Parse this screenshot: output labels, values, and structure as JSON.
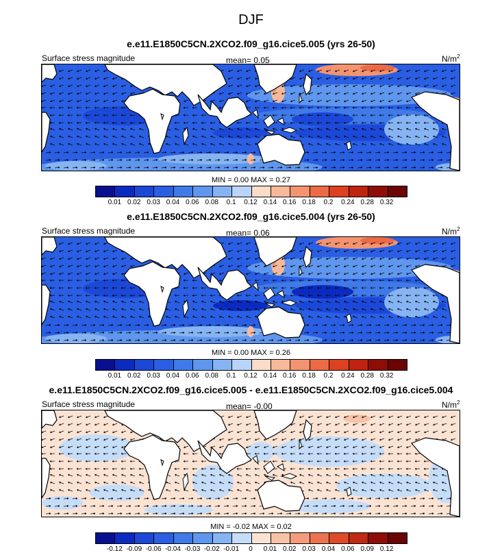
{
  "main_title": "DJF",
  "units_label": "N/m",
  "units_exp": "2",
  "field_label": "Surface stress magnitude",
  "panels": [
    {
      "title": "e.e11.E1850C5CN.2XCO2.f09_g16.cice5.005 (yrs 26-50)",
      "mean": "mean=  0.05",
      "minmax": "MIN =  0.00 MAX =  0.27",
      "tick_labels": [
        "0.01",
        "0.02",
        "0.03",
        "0.04",
        "0.06",
        "0.08",
        "0.1",
        "0.12",
        "0.14",
        "0.16",
        "0.18",
        "0.2",
        "0.24",
        "0.28",
        "0.32"
      ]
    },
    {
      "title": "e.e11.E1850C5CN.2XCO2.f09_g16.cice5.004 (yrs 26-50)",
      "mean": "mean=  0.06",
      "minmax": "MIN =  0.00 MAX =  0.26",
      "tick_labels": [
        "0.01",
        "0.02",
        "0.03",
        "0.04",
        "0.06",
        "0.08",
        "0.1",
        "0.12",
        "0.14",
        "0.16",
        "0.18",
        "0.2",
        "0.24",
        "0.28",
        "0.32"
      ]
    },
    {
      "title": "e.e11.E1850C5CN.2XCO2.f09_g16.cice5.005 - e.e11.E1850C5CN.2XCO2.f09_g16.cice5.004",
      "mean": "mean=  -0.00",
      "minmax": "MIN = -0.02 MAX =  0.02",
      "tick_labels": [
        "-0.12",
        "-0.09",
        "-0.06",
        "-0.04",
        "-0.03",
        "-0.02",
        "-0.01",
        "0",
        "0.01",
        "0.02",
        "0.03",
        "0.04",
        "0.06",
        "0.09",
        "0.12"
      ]
    }
  ],
  "colors": {
    "abs_scale": [
      "#08108f",
      "#0b2bc0",
      "#1c48d8",
      "#2a5fe3",
      "#3f7ae8",
      "#5f96ee",
      "#86b4f3",
      "#b9d4f8",
      "#fbdcc9",
      "#f8b99a",
      "#f39370",
      "#ec6a45",
      "#dc4120",
      "#bf2410",
      "#8e0d06",
      "#6b0404"
    ],
    "diff_scale": [
      "#08108f",
      "#0b2bc0",
      "#1c48d8",
      "#2a5fe3",
      "#3f7ae8",
      "#5f96ee",
      "#86b4f3",
      "#c6ddf8",
      "#fbe3d3",
      "#f8c2a6",
      "#f39b7a",
      "#ec734f",
      "#dc4a28",
      "#bf2a12",
      "#8e0d06",
      "#6b0404"
    ]
  }
}
